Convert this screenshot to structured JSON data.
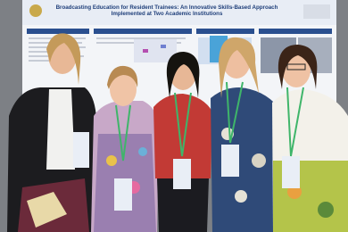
{
  "poster": {
    "title": "Broadcasting Education for Resident Trainees: An Innovative Skills-Based Approach Implemented at Two Academic Institutions"
  }
}
